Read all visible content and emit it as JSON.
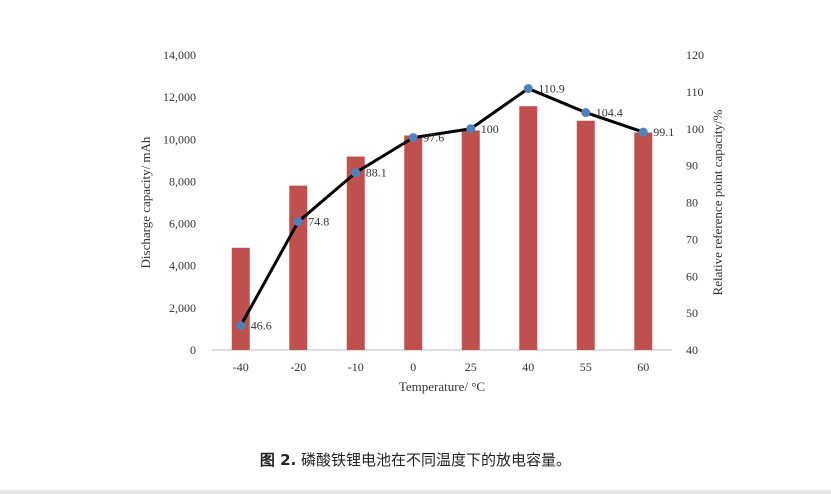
{
  "chart_data": {
    "type": "bar+line",
    "categories": [
      "-40",
      "-20",
      "-10",
      "0",
      "25",
      "40",
      "55",
      "60"
    ],
    "series": [
      {
        "values": [
          4850,
          7800,
          9180,
          10180,
          10420,
          11570,
          10880,
          10320
        ],
        "axis": "left",
        "kind": "bar",
        "color": "#c0504d"
      },
      {
        "values": [
          46.6,
          74.8,
          88.1,
          97.6,
          100,
          110.9,
          104.4,
          99.1
        ],
        "labels": [
          "46.6",
          "74.8",
          "88.1",
          "97.6",
          "100",
          "110.9",
          "104.4",
          "99.1"
        ],
        "axis": "right",
        "kind": "line",
        "line_color": "#000000",
        "marker_color": "#4f81bd"
      }
    ],
    "xlabel": "Temperature/ °C",
    "ylabel": "Discharge capacity/ mAh",
    "y2label": "Relative reference point capacity/%",
    "ylim": [
      0,
      14000
    ],
    "y_ticks": [
      "0",
      "2,000",
      "4,000",
      "6,000",
      "8,000",
      "10,000",
      "12,000",
      "14,000"
    ],
    "y2lim": [
      40,
      120
    ],
    "y2_ticks": [
      "40",
      "50",
      "60",
      "70",
      "80",
      "90",
      "100",
      "110",
      "120"
    ],
    "grid": false,
    "legend": "none"
  },
  "caption": {
    "label": "图 2.",
    "text": " 磷酸铁锂电池在不同温度下的放电容量。"
  }
}
